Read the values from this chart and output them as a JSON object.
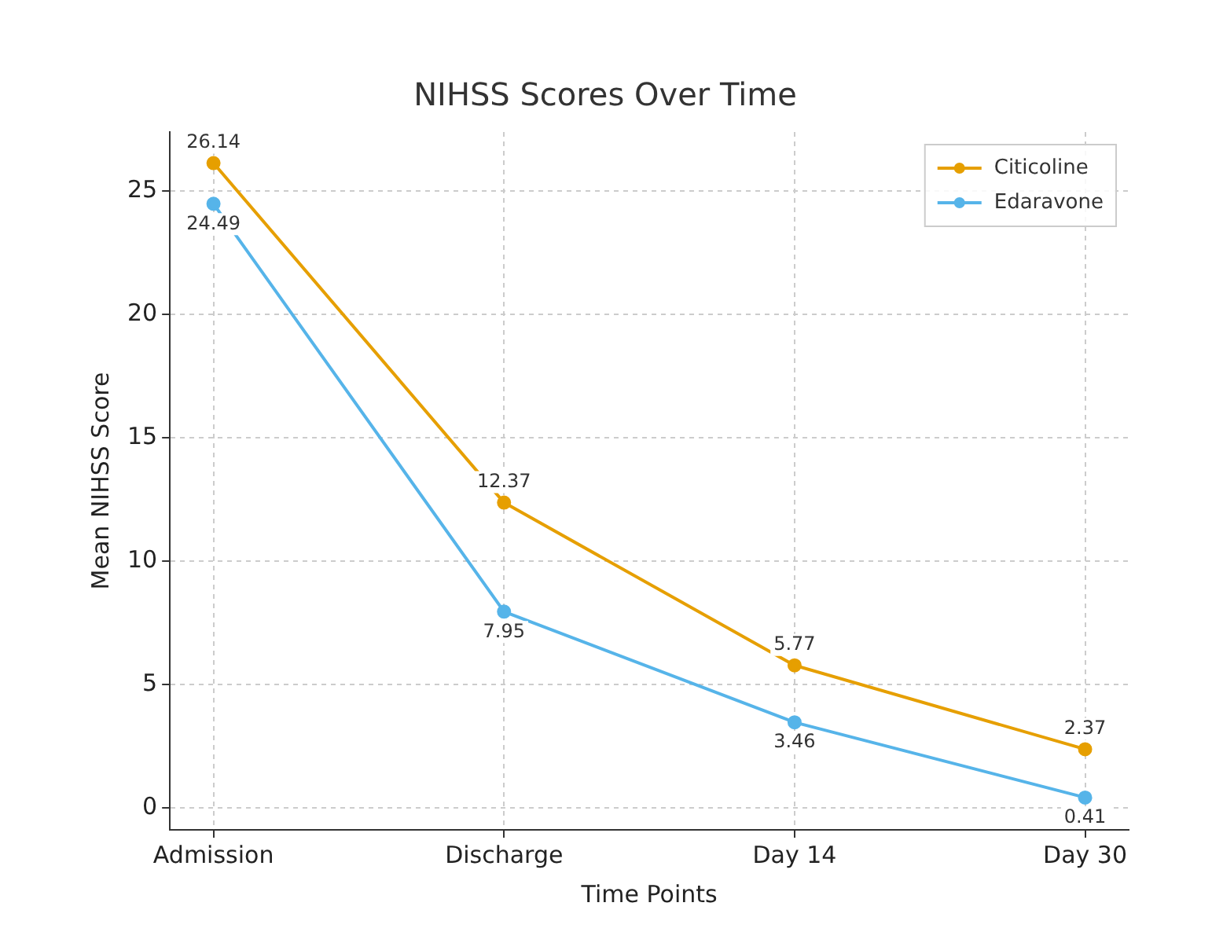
{
  "chart_data": {
    "type": "line",
    "title": "NIHSS Scores Over Time",
    "xlabel": "Time Points",
    "ylabel": "Mean NIHSS Score",
    "categories": [
      "Admission",
      "Discharge",
      "Day 14",
      "Day 30"
    ],
    "series": [
      {
        "name": "Citicoline",
        "color": "#e69f00",
        "values": [
          26.14,
          12.37,
          5.77,
          2.37
        ]
      },
      {
        "name": "Edaravone",
        "color": "#56b4e9",
        "values": [
          24.49,
          7.95,
          3.46,
          0.41
        ]
      }
    ],
    "ylim": [
      -0.9,
      27.4
    ],
    "yticks": [
      0,
      5,
      10,
      15,
      20,
      25
    ],
    "grid": true,
    "legend": "top right",
    "marker": "circle",
    "line_style": "solid",
    "data_labels": true
  }
}
